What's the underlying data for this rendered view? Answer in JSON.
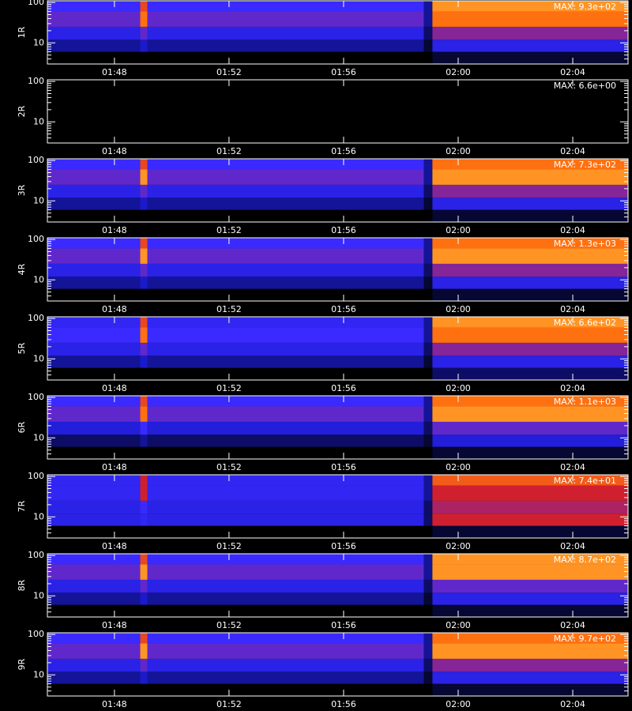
{
  "chart_data": [
    {
      "type": "heatmap",
      "ylabel": "1R",
      "annotation": "MAX: 9.3e+02",
      "z": [
        [
          0,
          0,
          0,
          0,
          0.05
        ],
        [
          0.15,
          0.2,
          0.15,
          0.05,
          0.3
        ],
        [
          0.3,
          0.45,
          0.3,
          0.1,
          0.5
        ],
        [
          0.45,
          0.8,
          0.45,
          0.15,
          0.8
        ],
        [
          0.4,
          0.7,
          0.4,
          0.15,
          0.85
        ]
      ]
    },
    {
      "type": "heatmap",
      "ylabel": "2R",
      "annotation": "MAX: 6.6e+00",
      "z": [
        [
          0,
          0,
          0,
          0,
          0
        ],
        [
          0,
          0,
          0,
          0,
          0
        ],
        [
          0,
          0,
          0,
          0,
          0
        ],
        [
          0,
          0,
          0,
          0,
          0
        ],
        [
          0,
          0,
          0,
          0,
          0
        ]
      ]
    },
    {
      "type": "heatmap",
      "ylabel": "3R",
      "annotation": "MAX: 7.3e+02",
      "z": [
        [
          0,
          0,
          0,
          0,
          0.05
        ],
        [
          0.15,
          0.2,
          0.15,
          0.05,
          0.3
        ],
        [
          0.3,
          0.45,
          0.3,
          0.1,
          0.5
        ],
        [
          0.45,
          0.85,
          0.45,
          0.15,
          0.85
        ],
        [
          0.4,
          0.7,
          0.4,
          0.15,
          0.8
        ]
      ]
    },
    {
      "type": "heatmap",
      "ylabel": "4R",
      "annotation": "MAX: 1.3e+03",
      "z": [
        [
          0,
          0,
          0,
          0,
          0.05
        ],
        [
          0.15,
          0.2,
          0.15,
          0.05,
          0.3
        ],
        [
          0.3,
          0.45,
          0.3,
          0.1,
          0.5
        ],
        [
          0.45,
          0.85,
          0.45,
          0.15,
          0.85
        ],
        [
          0.4,
          0.7,
          0.4,
          0.15,
          0.8
        ]
      ]
    },
    {
      "type": "heatmap",
      "ylabel": "5R",
      "annotation": "MAX: 6.6e+02",
      "z": [
        [
          0,
          0,
          0,
          0,
          0.1
        ],
        [
          0.15,
          0.2,
          0.15,
          0.05,
          0.3
        ],
        [
          0.3,
          0.45,
          0.3,
          0.1,
          0.5
        ],
        [
          0.4,
          0.8,
          0.4,
          0.15,
          0.8
        ],
        [
          0.35,
          0.7,
          0.35,
          0.15,
          0.85
        ]
      ]
    },
    {
      "type": "heatmap",
      "ylabel": "6R",
      "annotation": "MAX: 1.1e+03",
      "z": [
        [
          0,
          0,
          0,
          0,
          0.05
        ],
        [
          0.1,
          0.15,
          0.1,
          0.05,
          0.25
        ],
        [
          0.25,
          0.4,
          0.25,
          0.1,
          0.45
        ],
        [
          0.45,
          0.8,
          0.45,
          0.15,
          0.85
        ],
        [
          0.4,
          0.7,
          0.4,
          0.15,
          0.8
        ]
      ]
    },
    {
      "type": "heatmap",
      "ylabel": "7R",
      "annotation": "MAX: 7.4e+01",
      "z": [
        [
          0,
          0,
          0,
          0,
          0.05
        ],
        [
          0.3,
          0.35,
          0.3,
          0.1,
          0.6
        ],
        [
          0.3,
          0.4,
          0.3,
          0.1,
          0.55
        ],
        [
          0.35,
          0.6,
          0.35,
          0.15,
          0.6
        ],
        [
          0.35,
          0.6,
          0.35,
          0.15,
          0.75
        ]
      ]
    },
    {
      "type": "heatmap",
      "ylabel": "8R",
      "annotation": "MAX: 8.7e+02",
      "z": [
        [
          0,
          0,
          0,
          0,
          0.05
        ],
        [
          0.15,
          0.2,
          0.15,
          0.05,
          0.3
        ],
        [
          0.3,
          0.45,
          0.3,
          0.1,
          0.45
        ],
        [
          0.45,
          0.85,
          0.45,
          0.15,
          0.85
        ],
        [
          0.4,
          0.7,
          0.4,
          0.15,
          0.85
        ]
      ]
    },
    {
      "type": "heatmap",
      "ylabel": "9R",
      "annotation": "MAX: 9.7e+02",
      "z": [
        [
          0,
          0,
          0,
          0,
          0.05
        ],
        [
          0.15,
          0.2,
          0.15,
          0.05,
          0.3
        ],
        [
          0.3,
          0.45,
          0.3,
          0.1,
          0.5
        ],
        [
          0.45,
          0.85,
          0.45,
          0.15,
          0.85
        ],
        [
          0.4,
          0.7,
          0.4,
          0.15,
          0.8
        ]
      ]
    }
  ],
  "axes": {
    "xlim": [
      105.66,
      125.93
    ],
    "xticks": [
      {
        "value": 108,
        "label": "01:48"
      },
      {
        "value": 112,
        "label": "01:52"
      },
      {
        "value": 116,
        "label": "01:56"
      },
      {
        "value": 120,
        "label": "02:00"
      },
      {
        "value": 124,
        "label": "02:04"
      }
    ],
    "x_edges": [
      105.66,
      108.9,
      109.15,
      118.8,
      119.1,
      125.93
    ],
    "ylim": [
      3,
      110
    ],
    "yticks": [
      10,
      100
    ],
    "yminorticks": [
      3,
      4,
      5,
      6,
      7,
      8,
      9,
      20,
      30,
      40,
      50,
      60,
      70,
      80,
      90
    ],
    "y_edges": [
      3,
      6,
      12,
      25,
      60,
      110
    ],
    "log_y": true,
    "zlim": [
      0,
      1
    ],
    "colormap": [
      "#000000",
      "#1a1acc",
      "#3a2aff",
      "#d02030",
      "#ff7010",
      "#ffff60"
    ]
  }
}
